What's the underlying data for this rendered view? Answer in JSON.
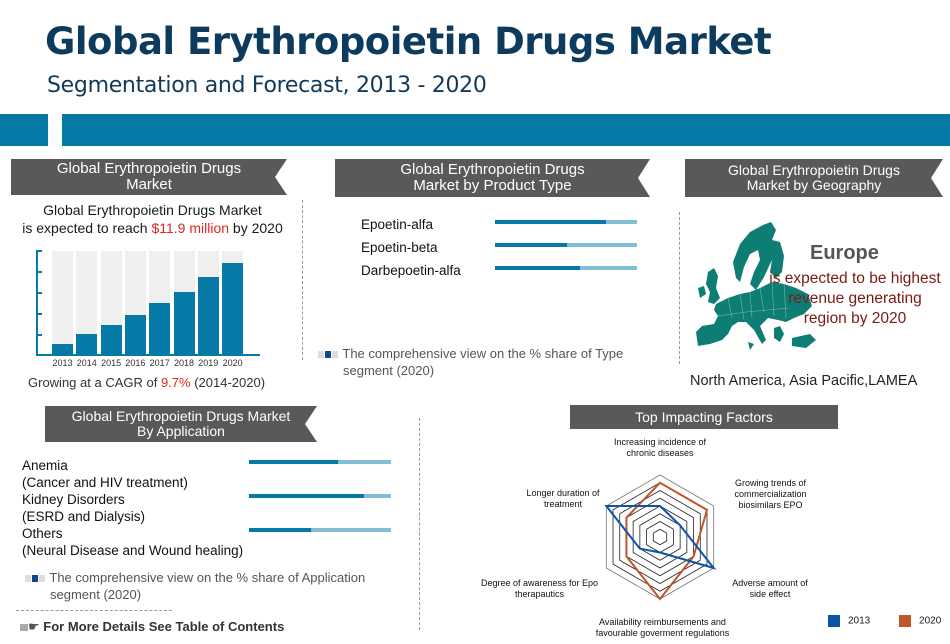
{
  "header": {
    "title": "Global Erythropoietin Drugs Market",
    "subtitle": "Segmentation and Forecast, 2013 - 2020"
  },
  "market": {
    "ribbon": [
      "Global Erythropoietin Drugs",
      "Market"
    ],
    "intro_line1": "Global Erythropoietin Drugs Market",
    "intro_prefix": "is expected to reach ",
    "intro_value": "$11.9 million",
    "intro_suffix": " by 2020",
    "cagr_prefix": "Growing at a CAGR of ",
    "cagr_value": "9.7%",
    "cagr_suffix": " (2014-2020)"
  },
  "product": {
    "ribbon": [
      "Global Erythropoietin Drugs",
      "Market by Product Type"
    ],
    "items": [
      {
        "label": "Epoetin-alfa",
        "share": 78
      },
      {
        "label": "Epoetin-beta",
        "share": 51
      },
      {
        "label": "Darbepoetin-alfa",
        "share": 60
      }
    ],
    "note": [
      "The comprehensive view on the % share of Type",
      "segment (2020)"
    ]
  },
  "geography": {
    "ribbon": [
      "Global Erythropoietin Drugs",
      "Market by Geography"
    ],
    "region": "Europe",
    "statement": [
      "is expected to be highest",
      "revenue generating",
      "region by 2020"
    ],
    "others": "North America, Asia Pacific,LAMEA",
    "map_color": "#0e7d74"
  },
  "application": {
    "ribbon": [
      "Global Erythropoietin Drugs Market",
      "By Application"
    ],
    "items": [
      {
        "label": "Anemia",
        "sub": "(Cancer and HIV treatment)",
        "share": 63
      },
      {
        "label": "Kidney Disorders",
        "sub": "(ESRD and Dialysis)",
        "share": 81
      },
      {
        "label": "Others",
        "sub": "(Neural Disease and Wound healing)",
        "share": 44
      }
    ],
    "note": [
      "The comprehensive view on the % share of Application",
      "segment (2020)"
    ]
  },
  "footer": {
    "link": "For More Details See Table of Contents"
  },
  "factors": {
    "ribbon": "Top Impacting Factors",
    "legend": [
      {
        "label": "2013",
        "color": "#0a55a8"
      },
      {
        "label": "2020",
        "color": "#c0562a"
      }
    ]
  },
  "colors": {
    "brand_blue": "#0779a6",
    "title_navy": "#0d3b5e",
    "ribbon_gray": "#595959",
    "highlight_red": "#e3261f"
  },
  "chart_data": [
    {
      "type": "bar",
      "title": "Global Erythropoietin Drugs Market",
      "categories": [
        "2013",
        "2014",
        "2015",
        "2016",
        "2017",
        "2018",
        "2019",
        "2020"
      ],
      "values": [
        10,
        19,
        28,
        38,
        50,
        60,
        75,
        88
      ],
      "value_note": "relative bar heights (% of axis); no numeric y-axis labels shown",
      "xlabel": "",
      "ylabel": "",
      "ylim": [
        0,
        100
      ],
      "grid": false
    },
    {
      "type": "bar",
      "orientation": "horizontal",
      "title": "Global Erythropoietin Drugs Market by Product Type",
      "categories": [
        "Epoetin-alfa",
        "Epoetin-beta",
        "Darbepoetin-alfa"
      ],
      "values": [
        78,
        51,
        60
      ],
      "ylim": [
        0,
        100
      ]
    },
    {
      "type": "bar",
      "orientation": "horizontal",
      "title": "Global Erythropoietin Drugs Market By Application",
      "categories": [
        "Anemia (Cancer and HIV treatment)",
        "Kidney Disorders (ESRD and Dialysis)",
        "Others (Neural Disease and Wound healing)"
      ],
      "values": [
        63,
        81,
        44
      ],
      "ylim": [
        0,
        100
      ]
    },
    {
      "type": "radar",
      "title": "Top Impacting Factors",
      "categories": [
        "Increasing incidence of chronic diseases",
        "Growing trends of commercialization biosimilars EPO",
        "Adverse amount of side effect",
        "Availability reimbursements and favourable goverment regulations",
        "Degree of awareness for Epo therapautics",
        "Longer duration of treatment"
      ],
      "series": [
        {
          "name": "2013",
          "values": [
            4,
            3,
            8,
            2,
            3,
            8
          ]
        },
        {
          "name": "2020",
          "values": [
            7,
            7,
            5,
            8,
            5,
            5
          ]
        }
      ],
      "rings": 8,
      "legend_position": "bottom-right"
    }
  ]
}
